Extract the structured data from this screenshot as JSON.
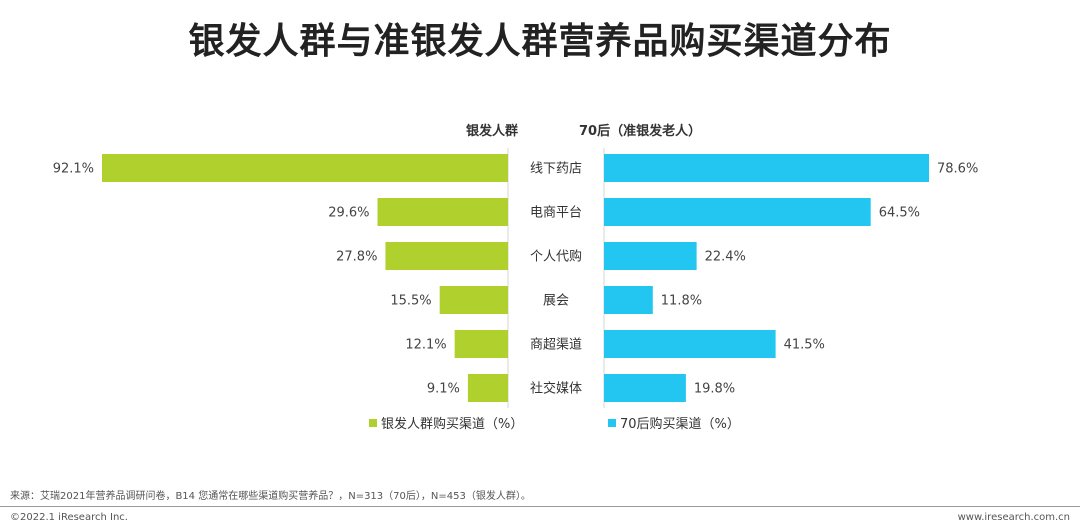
{
  "title": "银发人群与准银发人群营养品购买渠道分布",
  "chart_data": {
    "type": "bar",
    "orientation": "horizontal-butterfly",
    "title": "银发人群与准银发人群营养品购买渠道分布",
    "unit": "%",
    "categories": [
      "线下药店",
      "电商平台",
      "个人代购",
      "展会",
      "商超渠道",
      "社交媒体"
    ],
    "left_header": "银发人群",
    "right_header": "70后（准银发老人）",
    "series": [
      {
        "name": "银发人群购买渠道（%）",
        "side": "left",
        "color": "#b0d02e",
        "values": [
          92.1,
          29.6,
          27.8,
          15.5,
          12.1,
          9.1
        ],
        "labels": [
          "92.1%",
          "29.6%",
          "27.8%",
          "15.5%",
          "12.1%",
          "9.1%"
        ]
      },
      {
        "name": "70后购买渠道（%）",
        "side": "right",
        "color": "#22c6f0",
        "values": [
          78.6,
          64.5,
          22.4,
          11.8,
          41.5,
          19.8
        ],
        "labels": [
          "78.6%",
          "64.5%",
          "22.4%",
          "11.8%",
          "41.5%",
          "19.8%"
        ]
      }
    ],
    "xlim": [
      0,
      100
    ],
    "legend_position": "bottom-center",
    "grid": false
  },
  "footer": {
    "source": "来源：艾瑞2021年营养品调研问卷，B14 您通常在哪些渠道购买营养品？，N=313（70后），N=453（银发人群）。",
    "copyright": "©2022.1 iResearch Inc.",
    "url": "www.iresearch.com.cn"
  }
}
